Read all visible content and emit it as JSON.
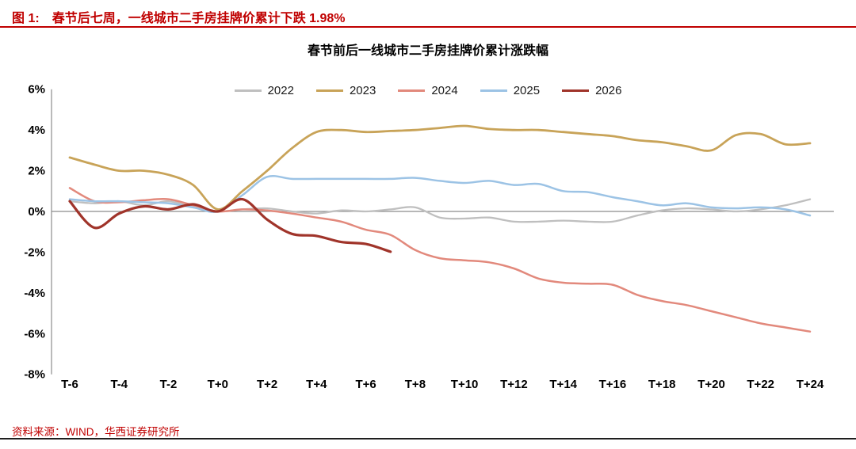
{
  "figure": {
    "caption_label": "图 1:",
    "caption_text": "春节后七周，一线城市二手房挂牌价累计下跌 1.98%",
    "source": "资料来源：WIND，华西证券研究所"
  },
  "colors": {
    "caption_red": "#C00000",
    "axis_gray": "#8C8C8C",
    "text_black": "#000000"
  },
  "chart_data": {
    "type": "line",
    "title": "春节前后一线城市二手房挂牌价累计涨跌幅",
    "xlabel": "",
    "ylabel": "",
    "x_unit_note": "weeks relative to Chinese New Year (T+0)",
    "grid": false,
    "legend_position": "top",
    "ylim": [
      -8,
      6
    ],
    "y_ticks": [
      6,
      4,
      2,
      0,
      -2,
      -4,
      -6,
      -8
    ],
    "y_tick_labels": [
      "6%",
      "4%",
      "2%",
      "0%",
      "-2%",
      "-4%",
      "-6%",
      "-8%"
    ],
    "x_tick_labels": [
      "T-6",
      "T-4",
      "T-2",
      "T+0",
      "T+2",
      "T+4",
      "T+6",
      "T+8",
      "T+10",
      "T+12",
      "T+14",
      "T+16",
      "T+18",
      "T+20",
      "T+22",
      "T+24"
    ],
    "x": [
      -6,
      -5,
      -4,
      -3,
      -2,
      -1,
      0,
      1,
      2,
      3,
      4,
      5,
      6,
      7,
      8,
      9,
      10,
      11,
      12,
      13,
      14,
      15,
      16,
      17,
      18,
      19,
      20,
      21,
      22,
      23,
      24
    ],
    "series": [
      {
        "name": "2022",
        "color": "#BFBFBF",
        "values": [
          0.5,
          0.4,
          0.5,
          0.3,
          0.5,
          0.2,
          0.0,
          0.1,
          0.15,
          0.0,
          -0.1,
          0.05,
          0.0,
          0.1,
          0.2,
          -0.3,
          -0.35,
          -0.3,
          -0.5,
          -0.5,
          -0.45,
          -0.5,
          -0.5,
          -0.2,
          0.05,
          0.15,
          0.1,
          0.0,
          0.1,
          0.3,
          0.6
        ]
      },
      {
        "name": "2023",
        "color": "#C8A358",
        "values": [
          2.65,
          2.3,
          2.0,
          2.0,
          1.8,
          1.3,
          0.1,
          1.0,
          2.0,
          3.1,
          3.9,
          4.0,
          3.9,
          3.95,
          4.0,
          4.1,
          4.2,
          4.05,
          4.0,
          4.0,
          3.9,
          3.8,
          3.7,
          3.5,
          3.4,
          3.2,
          3.0,
          3.75,
          3.8,
          3.3,
          3.35
        ]
      },
      {
        "name": "2024",
        "color": "#E2897C",
        "values": [
          1.15,
          0.5,
          0.45,
          0.55,
          0.6,
          0.3,
          0.0,
          0.1,
          0.05,
          -0.1,
          -0.3,
          -0.5,
          -0.9,
          -1.15,
          -1.9,
          -2.3,
          -2.4,
          -2.5,
          -2.8,
          -3.3,
          -3.5,
          -3.55,
          -3.6,
          -4.1,
          -4.4,
          -4.6,
          -4.9,
          -5.2,
          -5.5,
          -5.7,
          -5.9
        ]
      },
      {
        "name": "2025",
        "color": "#9CC3E5",
        "values": [
          0.6,
          0.5,
          0.5,
          0.45,
          0.4,
          0.2,
          0.0,
          0.8,
          1.7,
          1.6,
          1.6,
          1.6,
          1.6,
          1.6,
          1.65,
          1.5,
          1.4,
          1.5,
          1.3,
          1.35,
          1.0,
          0.95,
          0.7,
          0.5,
          0.3,
          0.4,
          0.2,
          0.15,
          0.2,
          0.1,
          -0.2
        ]
      },
      {
        "name": "2026",
        "color": "#A0342A",
        "values": [
          0.5,
          -0.8,
          -0.1,
          0.25,
          0.1,
          0.35,
          0.0,
          0.6,
          -0.4,
          -1.1,
          -1.2,
          -1.5,
          -1.6,
          -1.98,
          null,
          null,
          null,
          null,
          null,
          null,
          null,
          null,
          null,
          null,
          null,
          null,
          null,
          null,
          null,
          null,
          null
        ]
      }
    ]
  }
}
